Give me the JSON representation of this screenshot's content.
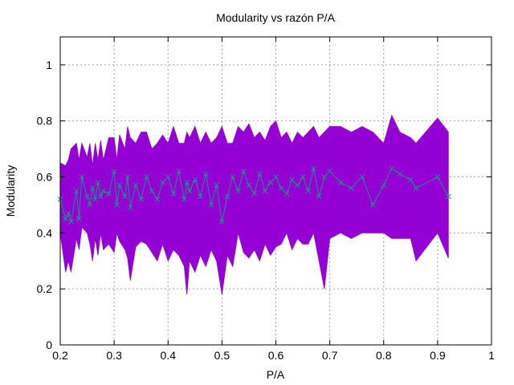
{
  "chart_data": {
    "type": "line",
    "title": "Modularity vs razón P/A",
    "xlabel": "P/A",
    "ylabel": "Modularity",
    "xlim": [
      0.2,
      1.0
    ],
    "ylim": [
      0,
      1.1
    ],
    "x_ticks": [
      "0.2",
      "0.3",
      "0.4",
      "0.5",
      "0.6",
      "0.7",
      "0.8",
      "0.9",
      "1"
    ],
    "y_ticks": [
      "0",
      "0.2",
      "0.4",
      "0.6",
      "0.8",
      "1"
    ],
    "grid": true,
    "colors": {
      "band": "#9400d3",
      "line": "#1f8f8f",
      "grid": "#a0a0a0",
      "axis": "#000000"
    },
    "series": [
      {
        "style": "band",
        "x": [
          0.2,
          0.21,
          0.215,
          0.22,
          0.23,
          0.235,
          0.24,
          0.25,
          0.255,
          0.26,
          0.265,
          0.27,
          0.275,
          0.28,
          0.29,
          0.3,
          0.305,
          0.31,
          0.32,
          0.325,
          0.33,
          0.34,
          0.35,
          0.36,
          0.37,
          0.38,
          0.39,
          0.4,
          0.41,
          0.42,
          0.43,
          0.435,
          0.44,
          0.45,
          0.46,
          0.47,
          0.48,
          0.49,
          0.5,
          0.51,
          0.52,
          0.53,
          0.54,
          0.55,
          0.56,
          0.57,
          0.58,
          0.59,
          0.6,
          0.61,
          0.62,
          0.63,
          0.64,
          0.65,
          0.66,
          0.67,
          0.68,
          0.69,
          0.7,
          0.72,
          0.74,
          0.76,
          0.78,
          0.8,
          0.815,
          0.83,
          0.85,
          0.86,
          0.9,
          0.92
        ],
        "low": [
          0.4,
          0.26,
          0.3,
          0.26,
          0.38,
          0.34,
          0.42,
          0.4,
          0.36,
          0.3,
          0.38,
          0.32,
          0.4,
          0.34,
          0.36,
          0.33,
          0.4,
          0.37,
          0.34,
          0.31,
          0.23,
          0.35,
          0.37,
          0.36,
          0.33,
          0.3,
          0.36,
          0.3,
          0.34,
          0.32,
          0.28,
          0.18,
          0.3,
          0.26,
          0.32,
          0.28,
          0.34,
          0.3,
          0.18,
          0.32,
          0.28,
          0.4,
          0.33,
          0.31,
          0.34,
          0.3,
          0.36,
          0.32,
          0.35,
          0.36,
          0.4,
          0.34,
          0.38,
          0.36,
          0.36,
          0.4,
          0.3,
          0.2,
          0.38,
          0.4,
          0.38,
          0.4,
          0.4,
          0.4,
          0.38,
          0.38,
          0.38,
          0.3,
          0.4,
          0.31
        ],
        "high": [
          0.65,
          0.64,
          0.66,
          0.7,
          0.72,
          0.66,
          0.72,
          0.67,
          0.72,
          0.64,
          0.72,
          0.66,
          0.73,
          0.66,
          0.74,
          0.74,
          0.66,
          0.75,
          0.7,
          0.78,
          0.74,
          0.72,
          0.76,
          0.76,
          0.7,
          0.72,
          0.75,
          0.72,
          0.78,
          0.72,
          0.72,
          0.76,
          0.74,
          0.78,
          0.72,
          0.76,
          0.72,
          0.74,
          0.78,
          0.72,
          0.72,
          0.78,
          0.76,
          0.79,
          0.74,
          0.76,
          0.73,
          0.78,
          0.8,
          0.74,
          0.76,
          0.72,
          0.76,
          0.74,
          0.76,
          0.78,
          0.74,
          0.76,
          0.78,
          0.78,
          0.76,
          0.78,
          0.76,
          0.72,
          0.82,
          0.76,
          0.74,
          0.72,
          0.81,
          0.76
        ]
      },
      {
        "style": "line",
        "x": [
          0.2,
          0.21,
          0.215,
          0.22,
          0.23,
          0.235,
          0.24,
          0.25,
          0.255,
          0.26,
          0.265,
          0.27,
          0.275,
          0.28,
          0.29,
          0.3,
          0.305,
          0.31,
          0.32,
          0.325,
          0.33,
          0.34,
          0.35,
          0.36,
          0.37,
          0.38,
          0.39,
          0.4,
          0.41,
          0.42,
          0.43,
          0.435,
          0.44,
          0.45,
          0.46,
          0.47,
          0.48,
          0.49,
          0.5,
          0.51,
          0.52,
          0.53,
          0.54,
          0.55,
          0.56,
          0.57,
          0.58,
          0.59,
          0.6,
          0.61,
          0.62,
          0.63,
          0.64,
          0.65,
          0.66,
          0.67,
          0.68,
          0.69,
          0.7,
          0.72,
          0.74,
          0.76,
          0.78,
          0.8,
          0.815,
          0.83,
          0.85,
          0.86,
          0.9,
          0.92
        ],
        "y": [
          0.52,
          0.45,
          0.47,
          0.44,
          0.55,
          0.45,
          0.6,
          0.53,
          0.5,
          0.56,
          0.52,
          0.58,
          0.53,
          0.55,
          0.54,
          0.62,
          0.5,
          0.57,
          0.53,
          0.6,
          0.49,
          0.57,
          0.52,
          0.6,
          0.55,
          0.52,
          0.58,
          0.6,
          0.54,
          0.62,
          0.52,
          0.58,
          0.55,
          0.59,
          0.53,
          0.61,
          0.5,
          0.57,
          0.44,
          0.53,
          0.6,
          0.55,
          0.62,
          0.57,
          0.54,
          0.61,
          0.55,
          0.58,
          0.6,
          0.56,
          0.54,
          0.59,
          0.57,
          0.6,
          0.55,
          0.63,
          0.53,
          0.6,
          0.62,
          0.58,
          0.56,
          0.6,
          0.5,
          0.57,
          0.63,
          0.61,
          0.59,
          0.56,
          0.6,
          0.53
        ]
      }
    ]
  }
}
